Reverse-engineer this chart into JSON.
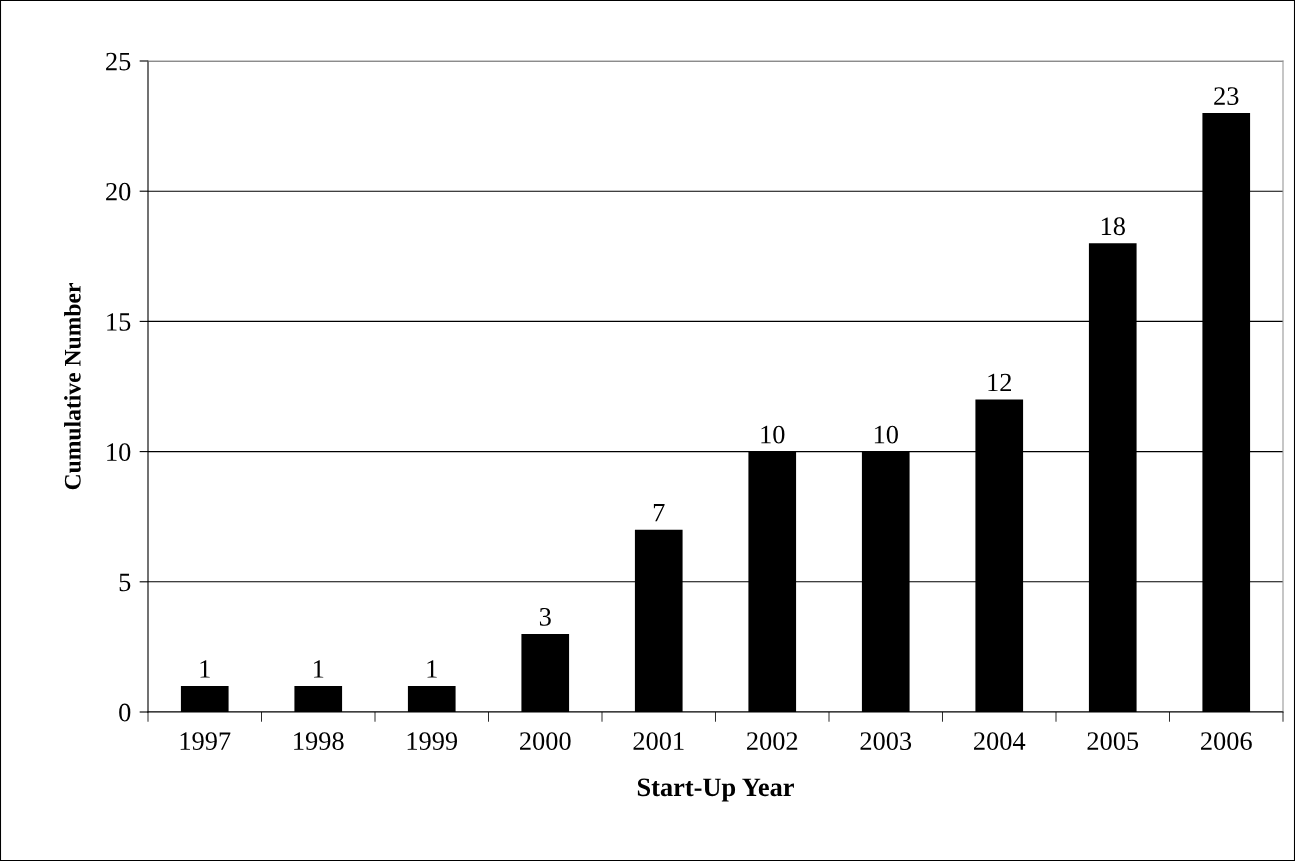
{
  "chart_data": {
    "type": "bar",
    "xlabel": "Start-Up Year",
    "ylabel": "Cumulative Number",
    "categories": [
      "1997",
      "1998",
      "1999",
      "2000",
      "2001",
      "2002",
      "2003",
      "2004",
      "2005",
      "2006"
    ],
    "values": [
      1,
      1,
      1,
      3,
      7,
      10,
      10,
      12,
      18,
      23
    ],
    "color": "#000000",
    "ylim": [
      0,
      25
    ],
    "yticks": [
      0,
      5,
      10,
      15,
      20,
      25
    ],
    "grid": "y",
    "data_labels": true
  }
}
